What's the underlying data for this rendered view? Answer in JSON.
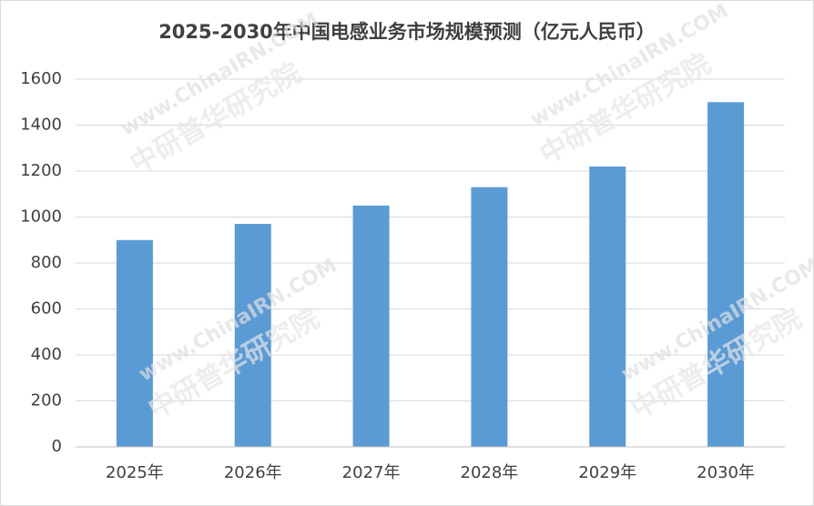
{
  "chart_data": {
    "type": "bar",
    "title": "2025-2030年中国电感业务市场规模预测（亿元人民币）",
    "categories": [
      "2025年",
      "2026年",
      "2027年",
      "2028年",
      "2029年",
      "2030年"
    ],
    "values": [
      900,
      970,
      1050,
      1130,
      1220,
      1500
    ],
    "color": "#5b9bd5",
    "ylim": [
      0,
      1600
    ],
    "yticks": [
      0,
      200,
      400,
      600,
      800,
      1000,
      1200,
      1400,
      1600
    ],
    "grid": true,
    "watermark": [
      "www.ChinaIRN.COM",
      "中研普华研究院"
    ]
  }
}
